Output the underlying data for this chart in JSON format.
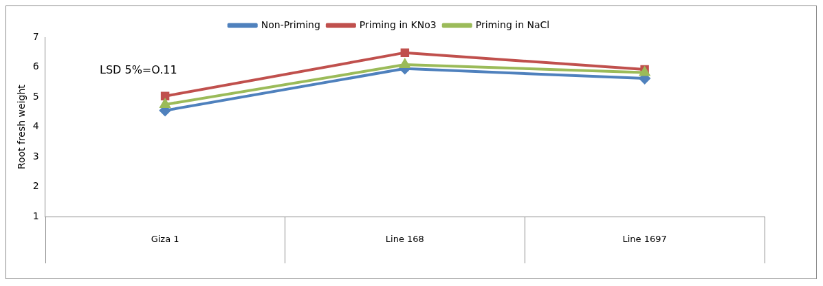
{
  "chart_data": {
    "type": "line",
    "ylabel": "Root fresh weight",
    "categories": [
      "Giza 1",
      "Line 168",
      "Line 1697"
    ],
    "series": [
      {
        "name": "Non-Priming",
        "color": "#4f81bd",
        "values": [
          4.55,
          5.95,
          5.62
        ],
        "marker": "diamond"
      },
      {
        "name": "Priming in KNo3",
        "color": "#c0504d",
        "values": [
          5.03,
          6.48,
          5.92
        ],
        "marker": "square"
      },
      {
        "name": "Priming in NaCl",
        "color": "#9bbb59",
        "values": [
          4.75,
          6.08,
          5.82
        ],
        "marker": "triangle"
      }
    ],
    "ylim": [
      1,
      7
    ],
    "yticks": [
      1,
      2,
      3,
      4,
      5,
      6,
      7
    ],
    "grid": false,
    "legend": "top",
    "annotations": [
      "LSD  5%=O.11"
    ]
  }
}
